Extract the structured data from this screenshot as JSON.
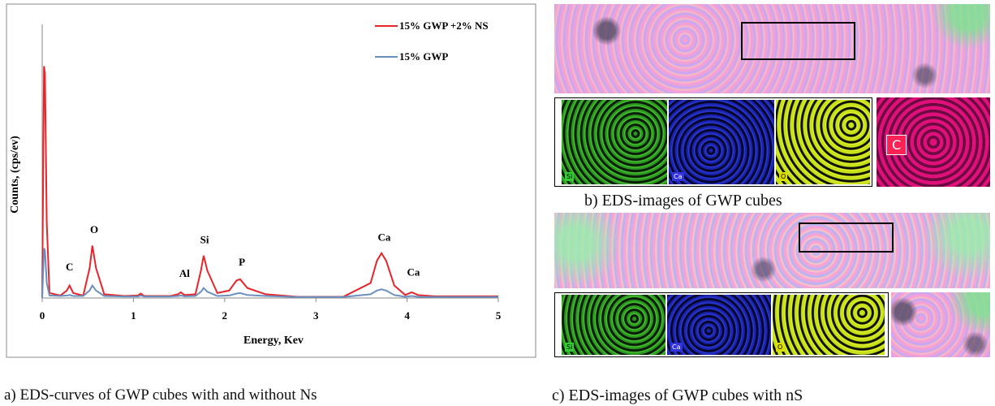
{
  "chart_data": {
    "type": "line",
    "y_label": "Counts, (cps/ev)",
    "x_label": "Energy, Kev",
    "x": [
      0,
      0.02,
      0.03,
      0.05,
      0.08,
      0.2,
      0.27,
      0.3,
      0.34,
      0.45,
      0.52,
      0.55,
      0.59,
      0.68,
      0.9,
      1.05,
      1.08,
      1.12,
      1.4,
      1.49,
      1.52,
      1.56,
      1.68,
      1.74,
      1.77,
      1.81,
      1.92,
      2.05,
      2.13,
      2.17,
      2.25,
      2.45,
      2.8,
      3.3,
      3.6,
      3.67,
      3.72,
      3.77,
      3.86,
      3.98,
      4.05,
      4.12,
      4.3,
      5.0
    ],
    "series": [
      {
        "name": "15% GWP +2% NS",
        "color": "#e8242a",
        "values": [
          0,
          93,
          90,
          30,
          2,
          1,
          3,
          5,
          2,
          1,
          12,
          21,
          12,
          1.5,
          0.8,
          1,
          1.8,
          0.8,
          0.8,
          1.5,
          2.3,
          1.2,
          1.5,
          11,
          17,
          11,
          2,
          3,
          7,
          7.5,
          4,
          1.5,
          0.5,
          0.5,
          6,
          15,
          18,
          15,
          5,
          1.2,
          2.3,
          1.2,
          0.7,
          0.7
        ]
      },
      {
        "name": "15% GWP",
        "color": "#6a8fbf",
        "values": [
          0,
          20,
          19,
          6,
          1,
          0.8,
          1,
          1.2,
          0.8,
          0.8,
          3,
          5,
          3,
          0.8,
          0.6,
          0.6,
          1,
          0.6,
          0.6,
          0.8,
          1,
          0.7,
          0.8,
          2.5,
          4,
          2.5,
          0.8,
          1,
          1.8,
          2,
          1.2,
          0.8,
          0.4,
          0.4,
          1.5,
          3,
          3.5,
          3,
          1.2,
          0.5,
          0.8,
          0.5,
          0.4,
          0.4
        ]
      }
    ],
    "xlim": [
      0,
      5
    ],
    "xticks": [
      0,
      1,
      2,
      3,
      4,
      5
    ],
    "ylim": [
      0,
      100
    ],
    "legend": "top-right",
    "annotations": [
      {
        "text": "C",
        "x": 0.3,
        "y": 11
      },
      {
        "text": "O",
        "x": 0.57,
        "y": 26
      },
      {
        "text": "Al",
        "x": 1.56,
        "y": 8.5
      },
      {
        "text": "Si",
        "x": 1.78,
        "y": 22
      },
      {
        "text": "P",
        "x": 2.19,
        "y": 13
      },
      {
        "text": "Ca",
        "x": 3.75,
        "y": 23
      },
      {
        "text": "Ca",
        "x": 4.07,
        "y": 9
      }
    ]
  },
  "captions": [
    "a) EDS-curves of GWP cubes with and without Ns",
    "b) EDS-images of GWP cubes",
    "c) EDS-images of GWP cubes with nS"
  ],
  "image_labels": {
    "b": [
      "Si",
      "Ca",
      "O",
      "C"
    ],
    "c": [
      "Si",
      "Ca",
      "O"
    ]
  }
}
